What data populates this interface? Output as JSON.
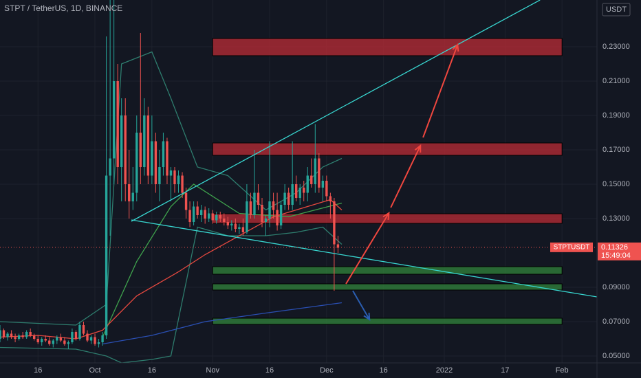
{
  "chart_data": {
    "type": "candlestick",
    "title": "STPT / TetherUS, 1D, BINANCE",
    "currency": "USDT",
    "xlim": [
      0,
      157.2
    ],
    "ylim": [
      0.046,
      0.2572
    ],
    "grid": true,
    "xticks": [
      {
        "value": 10,
        "label": "16"
      },
      {
        "value": 25,
        "label": "Oct"
      },
      {
        "value": 40,
        "label": "16"
      },
      {
        "value": 56,
        "label": "Nov"
      },
      {
        "value": 71,
        "label": "16"
      },
      {
        "value": 86,
        "label": "Dec"
      },
      {
        "value": 101,
        "label": "16"
      },
      {
        "value": 117,
        "label": "2022"
      },
      {
        "value": 133,
        "label": "17"
      },
      {
        "value": 148,
        "label": "Feb"
      }
    ],
    "yticks": [
      {
        "value": 0.05,
        "label": "0.05000"
      },
      {
        "value": 0.07,
        "label": "0.07000"
      },
      {
        "value": 0.09,
        "label": "0.09000"
      },
      {
        "value": 0.13,
        "label": "0.13000"
      },
      {
        "value": 0.15,
        "label": "0.15000"
      },
      {
        "value": 0.17,
        "label": "0.17000"
      },
      {
        "value": 0.19,
        "label": "0.19000"
      },
      {
        "value": 0.21,
        "label": "0.21000"
      },
      {
        "value": 0.23,
        "label": "0.23000"
      }
    ],
    "up_color": "#26a69a",
    "down_color": "#ef5350",
    "candles": {
      "x": [
        0,
        1,
        2,
        3,
        4,
        5,
        6,
        7,
        8,
        9,
        10,
        11,
        12,
        13,
        14,
        15,
        16,
        17,
        18,
        19,
        20,
        21,
        22,
        23,
        24,
        25,
        26,
        27,
        28,
        29,
        30,
        31,
        32,
        33,
        34,
        35,
        36,
        37,
        38,
        39,
        40,
        41,
        42,
        43,
        44,
        45,
        46,
        47,
        48,
        49,
        50,
        51,
        52,
        53,
        54,
        55,
        56,
        57,
        58,
        59,
        60,
        61,
        62,
        63,
        64,
        65,
        66,
        67,
        68,
        69,
        70,
        71,
        72,
        73,
        74,
        75,
        76,
        77,
        78,
        79,
        80,
        81,
        82,
        83,
        84,
        85,
        86,
        87,
        88,
        89
      ],
      "ohlc": [
        [
          0.06,
          0.068,
          0.058,
          0.065
        ],
        [
          0.065,
          0.066,
          0.06,
          0.061
        ],
        [
          0.061,
          0.064,
          0.059,
          0.063
        ],
        [
          0.063,
          0.065,
          0.06,
          0.061
        ],
        [
          0.061,
          0.063,
          0.058,
          0.06
        ],
        [
          0.06,
          0.063,
          0.059,
          0.062
        ],
        [
          0.062,
          0.064,
          0.06,
          0.061
        ],
        [
          0.061,
          0.065,
          0.06,
          0.064
        ],
        [
          0.064,
          0.066,
          0.061,
          0.062
        ],
        [
          0.062,
          0.063,
          0.059,
          0.06
        ],
        [
          0.06,
          0.062,
          0.057,
          0.058
        ],
        [
          0.058,
          0.061,
          0.056,
          0.06
        ],
        [
          0.06,
          0.062,
          0.058,
          0.059
        ],
        [
          0.059,
          0.061,
          0.056,
          0.057
        ],
        [
          0.057,
          0.06,
          0.055,
          0.059
        ],
        [
          0.059,
          0.062,
          0.057,
          0.061
        ],
        [
          0.061,
          0.063,
          0.058,
          0.059
        ],
        [
          0.059,
          0.061,
          0.056,
          0.057
        ],
        [
          0.057,
          0.059,
          0.054,
          0.058
        ],
        [
          0.058,
          0.066,
          0.057,
          0.064
        ],
        [
          0.064,
          0.065,
          0.059,
          0.06
        ],
        [
          0.06,
          0.07,
          0.059,
          0.068
        ],
        [
          0.068,
          0.07,
          0.062,
          0.063
        ],
        [
          0.063,
          0.065,
          0.058,
          0.059
        ],
        [
          0.059,
          0.062,
          0.057,
          0.061
        ],
        [
          0.061,
          0.063,
          0.056,
          0.057
        ],
        [
          0.057,
          0.06,
          0.055,
          0.058
        ],
        [
          0.058,
          0.064,
          0.056,
          0.062
        ],
        [
          0.062,
          0.236,
          0.06,
          0.155
        ],
        [
          0.155,
          0.26,
          0.12,
          0.165
        ],
        [
          0.165,
          0.26,
          0.15,
          0.21
        ],
        [
          0.21,
          0.22,
          0.15,
          0.16
        ],
        [
          0.16,
          0.2,
          0.14,
          0.19
        ],
        [
          0.19,
          0.2,
          0.14,
          0.15
        ],
        [
          0.15,
          0.17,
          0.13,
          0.14
        ],
        [
          0.14,
          0.16,
          0.135,
          0.145
        ],
        [
          0.145,
          0.19,
          0.14,
          0.18
        ],
        [
          0.18,
          0.238,
          0.15,
          0.16
        ],
        [
          0.16,
          0.2,
          0.155,
          0.19
        ],
        [
          0.19,
          0.195,
          0.15,
          0.155
        ],
        [
          0.155,
          0.19,
          0.15,
          0.175
        ],
        [
          0.175,
          0.18,
          0.145,
          0.15
        ],
        [
          0.15,
          0.17,
          0.14,
          0.16
        ],
        [
          0.16,
          0.18,
          0.155,
          0.175
        ],
        [
          0.175,
          0.177,
          0.15,
          0.155
        ],
        [
          0.155,
          0.16,
          0.14,
          0.158
        ],
        [
          0.158,
          0.16,
          0.145,
          0.15
        ],
        [
          0.15,
          0.158,
          0.145,
          0.155
        ],
        [
          0.155,
          0.157,
          0.142,
          0.145
        ],
        [
          0.145,
          0.148,
          0.13,
          0.135
        ],
        [
          0.135,
          0.14,
          0.125,
          0.128
        ],
        [
          0.128,
          0.14,
          0.126,
          0.137
        ],
        [
          0.137,
          0.14,
          0.13,
          0.132
        ],
        [
          0.132,
          0.138,
          0.128,
          0.135
        ],
        [
          0.135,
          0.137,
          0.127,
          0.13
        ],
        [
          0.13,
          0.136,
          0.128,
          0.133
        ],
        [
          0.133,
          0.135,
          0.127,
          0.129
        ],
        [
          0.129,
          0.134,
          0.127,
          0.132
        ],
        [
          0.132,
          0.134,
          0.128,
          0.13
        ],
        [
          0.13,
          0.133,
          0.126,
          0.128
        ],
        [
          0.128,
          0.131,
          0.124,
          0.126
        ],
        [
          0.126,
          0.129,
          0.123,
          0.127
        ],
        [
          0.127,
          0.13,
          0.122,
          0.124
        ],
        [
          0.124,
          0.127,
          0.121,
          0.125
        ],
        [
          0.125,
          0.13,
          0.12,
          0.122
        ],
        [
          0.122,
          0.15,
          0.121,
          0.14
        ],
        [
          0.14,
          0.145,
          0.13,
          0.132
        ],
        [
          0.132,
          0.17,
          0.13,
          0.145
        ],
        [
          0.145,
          0.15,
          0.135,
          0.138
        ],
        [
          0.138,
          0.142,
          0.125,
          0.128
        ],
        [
          0.128,
          0.132,
          0.12,
          0.13
        ],
        [
          0.13,
          0.175,
          0.125,
          0.14
        ],
        [
          0.14,
          0.145,
          0.13,
          0.135
        ],
        [
          0.135,
          0.145,
          0.123,
          0.126
        ],
        [
          0.126,
          0.14,
          0.124,
          0.138
        ],
        [
          0.138,
          0.15,
          0.135,
          0.145
        ],
        [
          0.145,
          0.148,
          0.135,
          0.138
        ],
        [
          0.138,
          0.175,
          0.135,
          0.15
        ],
        [
          0.15,
          0.155,
          0.14,
          0.142
        ],
        [
          0.142,
          0.15,
          0.138,
          0.148
        ],
        [
          0.148,
          0.152,
          0.14,
          0.145
        ],
        [
          0.145,
          0.16,
          0.14,
          0.155
        ],
        [
          0.155,
          0.165,
          0.148,
          0.15
        ],
        [
          0.15,
          0.185,
          0.145,
          0.165
        ],
        [
          0.165,
          0.168,
          0.145,
          0.148
        ],
        [
          0.148,
          0.155,
          0.14,
          0.152
        ],
        [
          0.152,
          0.155,
          0.14,
          0.143
        ],
        [
          0.143,
          0.145,
          0.13,
          0.14
        ],
        [
          0.14,
          0.142,
          0.088,
          0.115
        ],
        [
          0.115,
          0.12,
          0.11,
          0.113
        ]
      ]
    },
    "series": [
      {
        "color": "#2e7d6e",
        "x": [
          0,
          20,
          28,
          32,
          40,
          45,
          52,
          60,
          70,
          78,
          85,
          90
        ],
        "values": [
          0.07,
          0.068,
          0.08,
          0.22,
          0.227,
          0.2,
          0.16,
          0.155,
          0.135,
          0.145,
          0.16,
          0.165
        ]
      },
      {
        "color": "#2e7d6e",
        "x": [
          0,
          20,
          28,
          32,
          40,
          45,
          52,
          60,
          70,
          78,
          85,
          90
        ],
        "values": [
          0.055,
          0.054,
          0.05,
          0.046,
          0.048,
          0.05,
          0.125,
          0.12,
          0.12,
          0.122,
          0.125,
          0.115
        ]
      },
      {
        "color": "#3fa34d",
        "x": [
          27,
          36,
          45,
          51,
          63,
          76,
          90
        ],
        "values": [
          0.061,
          0.105,
          0.137,
          0.15,
          0.133,
          0.131,
          0.139
        ]
      },
      {
        "color": "#e5483f",
        "x": [
          0,
          10,
          20,
          27,
          36,
          47,
          54,
          72,
          87,
          90
        ],
        "values": [
          0.061,
          0.062,
          0.06,
          0.065,
          0.085,
          0.099,
          0.109,
          0.131,
          0.141,
          0.135
        ]
      },
      {
        "color": "#2a4fb3",
        "x": [
          27,
          40,
          54,
          70,
          90
        ],
        "values": [
          0.057,
          0.062,
          0.07,
          0.075,
          0.081
        ]
      }
    ],
    "zones": [
      {
        "x": [
          56,
          148
        ],
        "y": [
          0.2248,
          0.2348
        ],
        "color": "#b02a35"
      },
      {
        "x": [
          56,
          148
        ],
        "y": [
          0.1668,
          0.174
        ],
        "color": "#b02a35"
      },
      {
        "x": [
          56,
          148
        ],
        "y": [
          0.1272,
          0.1328
        ],
        "color": "#b02a35"
      },
      {
        "x": [
          56,
          148
        ],
        "y": [
          0.0976,
          0.102
        ],
        "color": "#2f7d3a"
      },
      {
        "x": [
          56,
          148
        ],
        "y": [
          0.0884,
          0.092
        ],
        "color": "#2f7d3a"
      },
      {
        "x": [
          56,
          148
        ],
        "y": [
          0.0684,
          0.072
        ],
        "color": "#2f7d3a"
      }
    ],
    "trendlines": [
      {
        "x": [
          34.6,
          142.2
        ],
        "y": [
          0.1284,
          0.2572
        ],
        "color": "#38d6d0"
      },
      {
        "x": [
          34.6,
          157.2
        ],
        "y": [
          0.1292,
          0.0844
        ],
        "color": "#38d6d0"
      }
    ],
    "arrows": [
      {
        "x": [
          91.1,
          102.4
        ],
        "y": [
          0.092,
          0.1332
        ],
        "color": "#f0473f"
      },
      {
        "x": [
          102.9,
          110.7
        ],
        "y": [
          0.1364,
          0.1724
        ],
        "color": "#f0473f"
      },
      {
        "x": [
          111.4,
          120.5
        ],
        "y": [
          0.1772,
          0.2312
        ],
        "color": "#f0473f"
      },
      {
        "x": [
          92.9,
          97.3
        ],
        "y": [
          0.088,
          0.0712
        ],
        "color": "#2a5db0"
      }
    ],
    "symbol": "STPTUSDT",
    "last_price": 0.11326,
    "countdown": "15:49:04"
  }
}
